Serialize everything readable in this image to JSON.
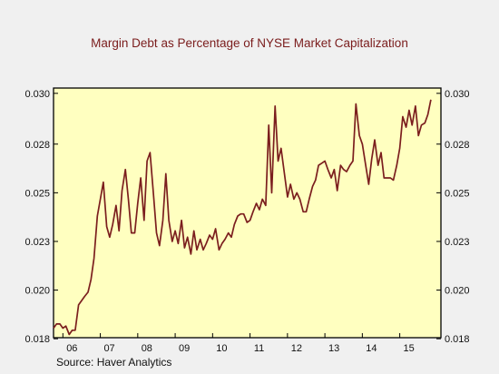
{
  "chart_data": {
    "type": "line",
    "title": "Margin Debt as Percentage of NYSE Market Capitalization",
    "source": "Source:   Haver Analytics",
    "xlabel": "",
    "ylabel": "",
    "x_range": [
      2005.75,
      2016.1
    ],
    "ylim": [
      0.018,
      0.03
    ],
    "yticks": [
      "0.018",
      "0.020",
      "0.023",
      "0.025",
      "0.028",
      "0.030"
    ],
    "ytick_values": [
      0.018,
      0.0203,
      0.0226,
      0.0249,
      0.0272,
      0.0296
    ],
    "xticks": [
      "06",
      "07",
      "08",
      "09",
      "10",
      "11",
      "12",
      "13",
      "14",
      "15"
    ],
    "xtick_values": [
      2006,
      2007,
      2008,
      2009,
      2010,
      2011,
      2012,
      2013,
      2014,
      2015
    ],
    "grid": false,
    "plot_background": "#ffffc0",
    "line_color": "#7b1e1e",
    "series": [
      {
        "points": [
          [
            2005.75,
            0.0185
          ],
          [
            2005.83,
            0.0187
          ],
          [
            2005.92,
            0.0187
          ],
          [
            2006.0,
            0.0185
          ],
          [
            2006.08,
            0.0186
          ],
          [
            2006.17,
            0.0182
          ],
          [
            2006.25,
            0.0184
          ],
          [
            2006.33,
            0.0184
          ],
          [
            2006.42,
            0.0196
          ],
          [
            2006.5,
            0.0198
          ],
          [
            2006.58,
            0.02
          ],
          [
            2006.67,
            0.0202
          ],
          [
            2006.75,
            0.0208
          ],
          [
            2006.83,
            0.0218
          ],
          [
            2006.92,
            0.0238
          ],
          [
            2007.0,
            0.0246
          ],
          [
            2007.08,
            0.0254
          ],
          [
            2007.17,
            0.0233
          ],
          [
            2007.25,
            0.0228
          ],
          [
            2007.33,
            0.0234
          ],
          [
            2007.42,
            0.0243
          ],
          [
            2007.5,
            0.0231
          ],
          [
            2007.58,
            0.025
          ],
          [
            2007.67,
            0.026
          ],
          [
            2007.75,
            0.0246
          ],
          [
            2007.83,
            0.023
          ],
          [
            2007.92,
            0.023
          ],
          [
            2008.0,
            0.0244
          ],
          [
            2008.08,
            0.0256
          ],
          [
            2008.17,
            0.0236
          ],
          [
            2008.25,
            0.0264
          ],
          [
            2008.33,
            0.0268
          ],
          [
            2008.42,
            0.0248
          ],
          [
            2008.5,
            0.023
          ],
          [
            2008.58,
            0.0224
          ],
          [
            2008.67,
            0.0236
          ],
          [
            2008.75,
            0.0258
          ],
          [
            2008.83,
            0.0236
          ],
          [
            2008.92,
            0.0226
          ],
          [
            2009.0,
            0.0231
          ],
          [
            2009.08,
            0.0225
          ],
          [
            2009.17,
            0.0236
          ],
          [
            2009.25,
            0.0223
          ],
          [
            2009.33,
            0.0228
          ],
          [
            2009.42,
            0.022
          ],
          [
            2009.5,
            0.0231
          ],
          [
            2009.58,
            0.0222
          ],
          [
            2009.67,
            0.0227
          ],
          [
            2009.75,
            0.0222
          ],
          [
            2009.83,
            0.0225
          ],
          [
            2009.92,
            0.0229
          ],
          [
            2010.0,
            0.0227
          ],
          [
            2010.08,
            0.0232
          ],
          [
            2010.17,
            0.0222
          ],
          [
            2010.25,
            0.0225
          ],
          [
            2010.33,
            0.0227
          ],
          [
            2010.42,
            0.023
          ],
          [
            2010.5,
            0.0228
          ],
          [
            2010.58,
            0.0234
          ],
          [
            2010.67,
            0.0238
          ],
          [
            2010.75,
            0.0239
          ],
          [
            2010.83,
            0.0239
          ],
          [
            2010.92,
            0.0235
          ],
          [
            2011.0,
            0.0236
          ],
          [
            2011.08,
            0.024
          ],
          [
            2011.17,
            0.0244
          ],
          [
            2011.25,
            0.0241
          ],
          [
            2011.33,
            0.0246
          ],
          [
            2011.42,
            0.0243
          ],
          [
            2011.5,
            0.0281
          ],
          [
            2011.58,
            0.0249
          ],
          [
            2011.67,
            0.029
          ],
          [
            2011.75,
            0.0264
          ],
          [
            2011.83,
            0.027
          ],
          [
            2011.92,
            0.0258
          ],
          [
            2012.0,
            0.0247
          ],
          [
            2012.08,
            0.0253
          ],
          [
            2012.17,
            0.0246
          ],
          [
            2012.25,
            0.0249
          ],
          [
            2012.33,
            0.0246
          ],
          [
            2012.42,
            0.024
          ],
          [
            2012.5,
            0.024
          ],
          [
            2012.58,
            0.0246
          ],
          [
            2012.67,
            0.0252
          ],
          [
            2012.75,
            0.0255
          ],
          [
            2012.83,
            0.0262
          ],
          [
            2012.92,
            0.0263
          ],
          [
            2013.0,
            0.0264
          ],
          [
            2013.08,
            0.026
          ],
          [
            2013.17,
            0.0256
          ],
          [
            2013.25,
            0.026
          ],
          [
            2013.33,
            0.025
          ],
          [
            2013.42,
            0.0262
          ],
          [
            2013.5,
            0.026
          ],
          [
            2013.58,
            0.0259
          ],
          [
            2013.67,
            0.0262
          ],
          [
            2013.75,
            0.0264
          ],
          [
            2013.83,
            0.0291
          ],
          [
            2013.92,
            0.0276
          ],
          [
            2014.0,
            0.0272
          ],
          [
            2014.08,
            0.0263
          ],
          [
            2014.17,
            0.0253
          ],
          [
            2014.25,
            0.0265
          ],
          [
            2014.33,
            0.0274
          ],
          [
            2014.42,
            0.0262
          ],
          [
            2014.5,
            0.0268
          ],
          [
            2014.58,
            0.0256
          ],
          [
            2014.67,
            0.0256
          ],
          [
            2014.75,
            0.0256
          ],
          [
            2014.83,
            0.0255
          ],
          [
            2014.92,
            0.0262
          ],
          [
            2015.0,
            0.027
          ],
          [
            2015.08,
            0.0285
          ],
          [
            2015.17,
            0.028
          ],
          [
            2015.25,
            0.0288
          ],
          [
            2015.33,
            0.0281
          ],
          [
            2015.42,
            0.029
          ],
          [
            2015.5,
            0.0276
          ],
          [
            2015.58,
            0.0281
          ],
          [
            2015.67,
            0.0282
          ],
          [
            2015.75,
            0.0286
          ],
          [
            2015.83,
            0.0293
          ]
        ]
      }
    ]
  }
}
